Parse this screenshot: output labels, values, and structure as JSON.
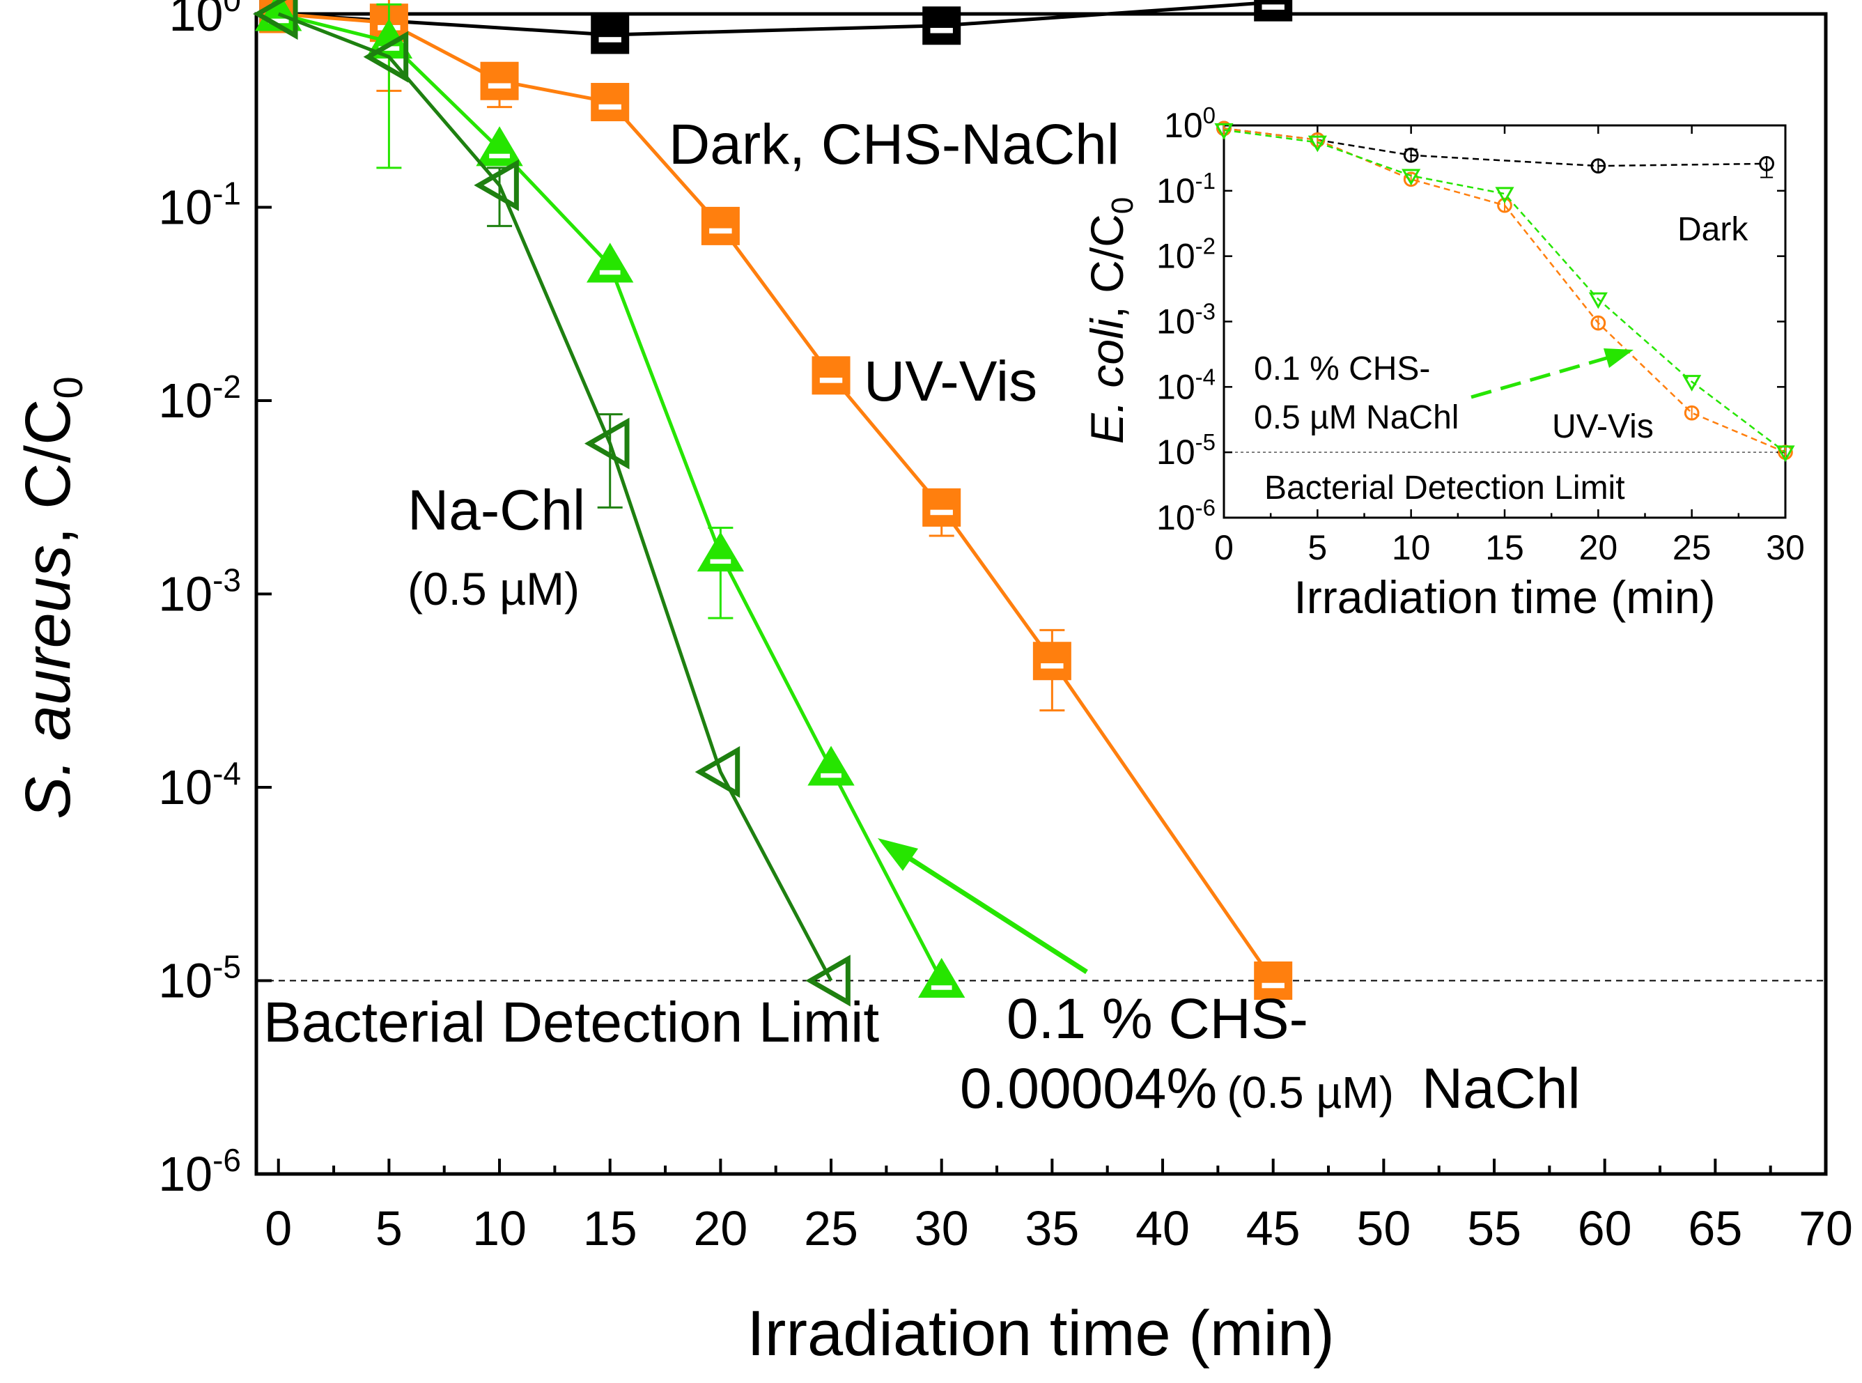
{
  "chart_data": [
    {
      "type": "line",
      "yscale": "log",
      "xlabel": "Irradiation time (min)",
      "ylabel": {
        "italic": "S. aureus",
        "rest": ", C/C",
        "sub": "0"
      },
      "xlim": [
        -1,
        70
      ],
      "xticks": [
        0,
        5,
        10,
        15,
        20,
        25,
        30,
        35,
        40,
        45,
        50,
        55,
        60,
        65,
        70
      ],
      "yticks": [
        {
          "base": "10",
          "exp": "0"
        },
        {
          "base": "10",
          "exp": "-1"
        },
        {
          "base": "10",
          "exp": "-2"
        },
        {
          "base": "10",
          "exp": "-3"
        },
        {
          "base": "10",
          "exp": "-4"
        },
        {
          "base": "10",
          "exp": "-5"
        },
        {
          "base": "10",
          "exp": "-6"
        }
      ],
      "ylim_exp": [
        -6,
        0
      ],
      "detection_limit": 1e-05,
      "series": [
        {
          "name": "Dark, CHS-NaChl",
          "color": "#000000",
          "marker": "square",
          "x": [
            0,
            15,
            30,
            45
          ],
          "y": [
            1.0,
            0.78,
            0.87,
            1.15
          ],
          "err_up": [
            0,
            0,
            0,
            0
          ],
          "err_dn": [
            0,
            0,
            0,
            0
          ]
        },
        {
          "name": "UV-Vis",
          "color": "#ff7f0e",
          "marker": "square",
          "x": [
            0,
            5,
            10,
            15,
            20,
            25,
            30,
            35,
            45
          ],
          "y": [
            1.0,
            0.9,
            0.45,
            0.35,
            0.08,
            0.0135,
            0.0028,
            0.00045,
            1e-05
          ],
          "err_up": [
            0,
            0.55,
            0.1,
            0,
            0,
            0,
            0,
            0.0002,
            0
          ],
          "err_dn": [
            0,
            0.5,
            0.12,
            0,
            0,
            0,
            0.0008,
            0.0002,
            0
          ]
        },
        {
          "name": "0.1 % CHS-0.00004% (0.5 µM) NaChl",
          "color": "#26e500",
          "marker": "triangle-up",
          "x": [
            0,
            5,
            10,
            15,
            20,
            25,
            30
          ],
          "y": [
            1.0,
            0.72,
            0.2,
            0.05,
            0.0016,
            0.000125,
            1e-05
          ],
          "err_up": [
            0,
            0.4,
            0,
            0,
            0.0006,
            0,
            0
          ],
          "err_dn": [
            0,
            0.56,
            0,
            0,
            0.00085,
            0,
            0
          ]
        },
        {
          "name": "Na-Chl (0.5 µM)",
          "color": "#1e8010",
          "marker": "triangle-left",
          "x": [
            0,
            5,
            10,
            15,
            20,
            25
          ],
          "y": [
            1.0,
            0.6,
            0.13,
            0.006,
            0.00012,
            1e-05
          ],
          "err_up": [
            0,
            0,
            0.03,
            0.0025,
            0,
            0
          ],
          "err_dn": [
            0,
            0,
            0.05,
            0.0032,
            0,
            0
          ]
        }
      ],
      "annotations": {
        "dark": "Dark, CHS-NaChl",
        "uvvis": "UV-Vis",
        "nachl_line1": "Na-Chl",
        "nachl_line2": "(0.5 µM)",
        "detection": "Bacterial Detection Limit",
        "chs_line1": "0.1 % CHS-",
        "chs_line2_a": "0.00004%",
        "chs_line2_b": "(0.5 µM)",
        "chs_line2_c": "NaChl"
      }
    },
    {
      "type": "line",
      "yscale": "log",
      "xlabel": "Irradiation time (min)",
      "ylabel": {
        "italic": "E. coli",
        "rest": ", C/C",
        "sub": "0"
      },
      "xlim": [
        0,
        30
      ],
      "xticks": [
        0,
        5,
        10,
        15,
        20,
        25,
        30
      ],
      "yticks": [
        {
          "base": "10",
          "exp": "0"
        },
        {
          "base": "10",
          "exp": "-1"
        },
        {
          "base": "10",
          "exp": "-2"
        },
        {
          "base": "10",
          "exp": "-3"
        },
        {
          "base": "10",
          "exp": "-4"
        },
        {
          "base": "10",
          "exp": "-5"
        },
        {
          "base": "10",
          "exp": "-6"
        }
      ],
      "ylim_exp": [
        -6,
        0
      ],
      "detection_limit": 1e-05,
      "series": [
        {
          "name": "Dark",
          "color": "#000000",
          "marker": "circle",
          "x": [
            0,
            5,
            10,
            20,
            29
          ],
          "y": [
            0.9,
            0.6,
            0.35,
            0.24,
            0.26
          ],
          "err_up": [
            0,
            0,
            0.08,
            0,
            0
          ],
          "err_dn": [
            0,
            0,
            0,
            0,
            0.1
          ]
        },
        {
          "name": "UV-Vis",
          "color": "#ff7f0e",
          "marker": "circle",
          "x": [
            0,
            5,
            10,
            15,
            20,
            25,
            30
          ],
          "y": [
            0.9,
            0.6,
            0.15,
            0.06,
            0.00095,
            4e-05,
            1e-05
          ],
          "err_up": [
            0,
            0,
            0,
            0,
            0,
            0,
            0
          ],
          "err_dn": [
            0,
            0,
            0,
            0,
            0,
            0,
            0
          ]
        },
        {
          "name": "0.1 % CHS-0.5 µM NaChl",
          "color": "#26e500",
          "marker": "triangle-down",
          "x": [
            0,
            5,
            10,
            15,
            20,
            25,
            30
          ],
          "y": [
            0.85,
            0.55,
            0.17,
            0.09,
            0.0022,
            0.00012,
            1e-05
          ],
          "err_up": [
            0,
            0,
            0,
            0,
            0,
            0,
            0
          ],
          "err_dn": [
            0,
            0,
            0,
            0,
            0,
            0,
            0
          ]
        }
      ],
      "annotations": {
        "dark": "Dark",
        "uvvis": "UV-Vis",
        "chs_line1": "0.1 % CHS-",
        "chs_line2": "0.5 µM NaChl",
        "detection": "Bacterial Detection Limit"
      }
    }
  ]
}
